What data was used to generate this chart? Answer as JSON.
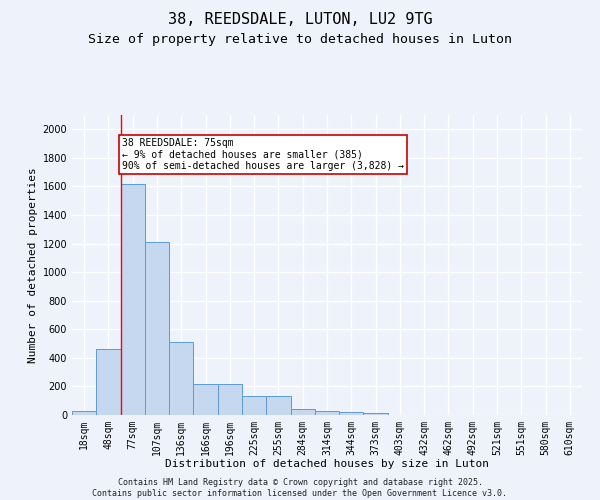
{
  "title": "38, REEDSDALE, LUTON, LU2 9TG",
  "subtitle": "Size of property relative to detached houses in Luton",
  "xlabel": "Distribution of detached houses by size in Luton",
  "ylabel": "Number of detached properties",
  "categories": [
    "18sqm",
    "48sqm",
    "77sqm",
    "107sqm",
    "136sqm",
    "166sqm",
    "196sqm",
    "225sqm",
    "255sqm",
    "284sqm",
    "314sqm",
    "344sqm",
    "373sqm",
    "403sqm",
    "432sqm",
    "462sqm",
    "492sqm",
    "521sqm",
    "551sqm",
    "580sqm",
    "610sqm"
  ],
  "values": [
    30,
    460,
    1620,
    1210,
    510,
    220,
    220,
    130,
    130,
    40,
    30,
    20,
    15,
    0,
    0,
    0,
    0,
    0,
    0,
    0,
    0
  ],
  "bar_color": "#c5d8f0",
  "bar_edge_color": "#5b9bd5",
  "red_line_x": 1.5,
  "annotation_line1": "38 REEDSDALE: 75sqm",
  "annotation_line2": "← 9% of detached houses are smaller (385)",
  "annotation_line3": "90% of semi-detached houses are larger (3,828) →",
  "annotation_box_color": "#ffffff",
  "annotation_edge_color": "#cc0000",
  "ylim": [
    0,
    2100
  ],
  "yticks": [
    0,
    200,
    400,
    600,
    800,
    1000,
    1200,
    1400,
    1600,
    1800,
    2000
  ],
  "footer_line1": "Contains HM Land Registry data © Crown copyright and database right 2025.",
  "footer_line2": "Contains public sector information licensed under the Open Government Licence v3.0.",
  "background_color": "#eef2fb",
  "grid_color": "#ffffff",
  "title_fontsize": 11,
  "subtitle_fontsize": 9.5,
  "xlabel_fontsize": 8,
  "ylabel_fontsize": 8,
  "tick_fontsize": 7,
  "footer_fontsize": 6,
  "annotation_fontsize": 7
}
